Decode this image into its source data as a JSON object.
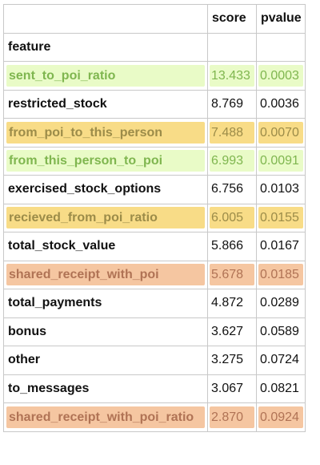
{
  "table": {
    "headers": {
      "feature": "feature",
      "score": "score",
      "pvalue": "pvalue"
    },
    "rows": [
      {
        "feature": "sent_to_poi_ratio",
        "score": "13.433",
        "pvalue": "0.0003",
        "highlight": "green"
      },
      {
        "feature": "restricted_stock",
        "score": "8.769",
        "pvalue": "0.0036",
        "highlight": "none"
      },
      {
        "feature": "from_poi_to_this_person",
        "score": "7.488",
        "pvalue": "0.0070",
        "highlight": "yellow"
      },
      {
        "feature": "from_this_person_to_poi",
        "score": "6.993",
        "pvalue": "0.0091",
        "highlight": "green"
      },
      {
        "feature": "exercised_stock_options",
        "score": "6.756",
        "pvalue": "0.0103",
        "highlight": "none"
      },
      {
        "feature": "recieved_from_poi_ratio",
        "score": "6.005",
        "pvalue": "0.0155",
        "highlight": "yellow"
      },
      {
        "feature": "total_stock_value",
        "score": "5.866",
        "pvalue": "0.0167",
        "highlight": "none"
      },
      {
        "feature": "shared_receipt_with_poi",
        "score": "5.678",
        "pvalue": "0.0185",
        "highlight": "orange"
      },
      {
        "feature": "total_payments",
        "score": "4.872",
        "pvalue": "0.0289",
        "highlight": "none"
      },
      {
        "feature": "bonus",
        "score": "3.627",
        "pvalue": "0.0589",
        "highlight": "none"
      },
      {
        "feature": "other",
        "score": "3.275",
        "pvalue": "0.0724",
        "highlight": "none"
      },
      {
        "feature": "to_messages",
        "score": "3.067",
        "pvalue": "0.0821",
        "highlight": "none"
      },
      {
        "feature": "shared_receipt_with_poi_ratio",
        "score": "2.870",
        "pvalue": "0.0924",
        "highlight": "orange"
      }
    ]
  },
  "colors": {
    "green": "#e9fbc7",
    "yellow": "#f8dc87",
    "orange": "#f5c6a1"
  }
}
